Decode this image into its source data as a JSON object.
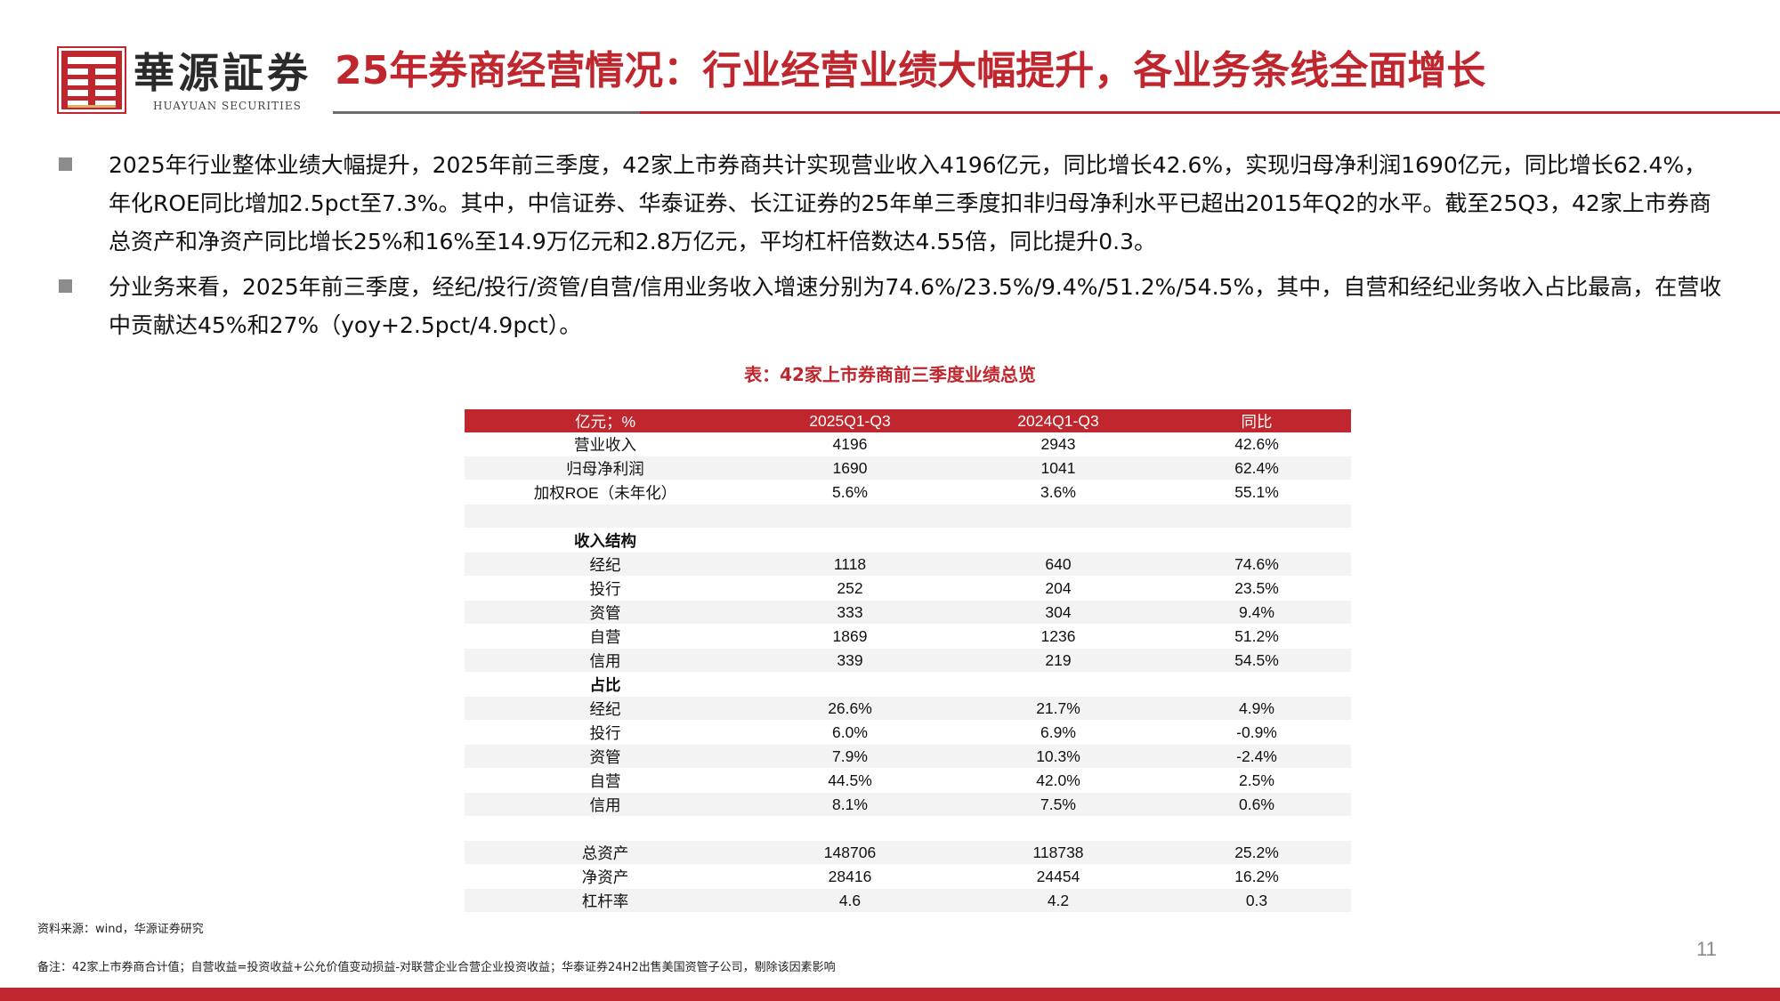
{
  "header": {
    "brand_cn": "華源証券",
    "brand_en": "HUAYUAN SECURITIES",
    "title": "25年券商经营情况：行业经营业绩大幅提升，各业务条线全面增长",
    "accent_color": "#c0262d"
  },
  "bullets": [
    "2025年行业整体业绩大幅提升，2025年前三季度，42家上市券商共计实现营业收入4196亿元，同比增长42.6%，实现归母净利润1690亿元，同比增长62.4%，年化ROE同比增加2.5pct至7.3%。其中，中信证券、华泰证券、长江证券的25年单三季度扣非归母净利水平已超出2015年Q2的水平。截至25Q3，42家上市券商总资产和净资产同比增长25%和16%至14.9万亿元和2.8万亿元，平均杠杆倍数达4.55倍，同比提升0.3。",
    "分业务来看，2025年前三季度，经纪/投行/资管/自营/信用业务收入增速分别为74.6%/23.5%/9.4%/51.2%/54.5%，其中，自营和经纪业务收入占比最高，在营收中贡献达45%和27%（yoy+2.5pct/4.9pct）。"
  ],
  "table": {
    "caption": "表：42家上市券商前三季度业绩总览",
    "headers": [
      "亿元；%",
      "2025Q1-Q3",
      "2024Q1-Q3",
      "同比"
    ],
    "rows": [
      {
        "cells": [
          "营业收入",
          "4196",
          "2943",
          "42.6%"
        ]
      },
      {
        "cells": [
          "归母净利润",
          "1690",
          "1041",
          "62.4%"
        ]
      },
      {
        "cells": [
          "加权ROE（未年化）",
          "5.6%",
          "3.6%",
          "55.1%"
        ]
      },
      {
        "cells": [
          "",
          "",
          "",
          ""
        ]
      },
      {
        "cells": [
          "收入结构",
          "",
          "",
          ""
        ],
        "section": true
      },
      {
        "cells": [
          "经纪",
          "1118",
          "640",
          "74.6%"
        ]
      },
      {
        "cells": [
          "投行",
          "252",
          "204",
          "23.5%"
        ]
      },
      {
        "cells": [
          "资管",
          "333",
          "304",
          "9.4%"
        ]
      },
      {
        "cells": [
          "自营",
          "1869",
          "1236",
          "51.2%"
        ]
      },
      {
        "cells": [
          "信用",
          "339",
          "219",
          "54.5%"
        ]
      },
      {
        "cells": [
          "占比",
          "",
          "",
          ""
        ],
        "section": true
      },
      {
        "cells": [
          "经纪",
          "26.6%",
          "21.7%",
          "4.9%"
        ]
      },
      {
        "cells": [
          "投行",
          "6.0%",
          "6.9%",
          "-0.9%"
        ]
      },
      {
        "cells": [
          "资管",
          "7.9%",
          "10.3%",
          "-2.4%"
        ]
      },
      {
        "cells": [
          "自营",
          "44.5%",
          "42.0%",
          "2.5%"
        ]
      },
      {
        "cells": [
          "信用",
          "8.1%",
          "7.5%",
          "0.6%"
        ]
      },
      {
        "cells": [
          "",
          "",
          "",
          ""
        ]
      },
      {
        "cells": [
          "总资产",
          "148706",
          "118738",
          "25.2%"
        ]
      },
      {
        "cells": [
          "净资产",
          "28416",
          "24454",
          "16.2%"
        ]
      },
      {
        "cells": [
          "杠杆率",
          "4.6",
          "4.2",
          "0.3"
        ]
      }
    ]
  },
  "footer": {
    "source": "资料来源：wind，华源证券研究",
    "note": "备注：42家上市券商合计值；自营收益=投资收益+公允价值变动损益-对联营企业合营企业投资收益；华泰证券24H2出售美国资管子公司，剔除该因素影响",
    "page_number": "11"
  }
}
